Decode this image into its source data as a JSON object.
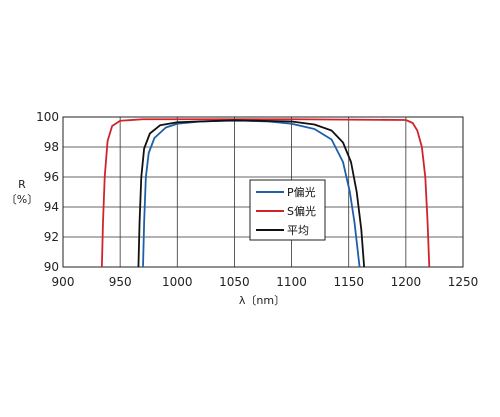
{
  "chart_data": {
    "type": "line",
    "title": "",
    "xlabel": "λ〔nm〕",
    "ylabel_lines": [
      "R",
      "〔%〕"
    ],
    "xlim": [
      900,
      1250
    ],
    "ylim": [
      90,
      100
    ],
    "xticks": [
      900,
      950,
      1000,
      1050,
      1100,
      1150,
      1200,
      1250
    ],
    "yticks": [
      90,
      92,
      94,
      96,
      98,
      100
    ],
    "grid": true,
    "legend_position": "center",
    "series": [
      {
        "name": "P偏光",
        "color": "#1f5fa8",
        "points": [
          [
            970,
            90.0
          ],
          [
            971,
            93.0
          ],
          [
            972.5,
            96.0
          ],
          [
            975,
            97.6
          ],
          [
            980,
            98.6
          ],
          [
            990,
            99.3
          ],
          [
            1000,
            99.55
          ],
          [
            1020,
            99.7
          ],
          [
            1040,
            99.75
          ],
          [
            1060,
            99.75
          ],
          [
            1080,
            99.7
          ],
          [
            1100,
            99.55
          ],
          [
            1120,
            99.2
          ],
          [
            1135,
            98.5
          ],
          [
            1145,
            97.0
          ],
          [
            1151,
            95.0
          ],
          [
            1155,
            93.0
          ],
          [
            1158,
            91.0
          ],
          [
            1159.5,
            90.0
          ]
        ]
      },
      {
        "name": "S偏光",
        "color": "#d0242b",
        "points": [
          [
            934,
            90.0
          ],
          [
            935,
            93.0
          ],
          [
            936.5,
            96.0
          ],
          [
            939,
            98.4
          ],
          [
            943,
            99.4
          ],
          [
            950,
            99.75
          ],
          [
            970,
            99.85
          ],
          [
            1100,
            99.85
          ],
          [
            1200,
            99.8
          ],
          [
            1206,
            99.6
          ],
          [
            1210,
            99.1
          ],
          [
            1214,
            98.0
          ],
          [
            1217,
            96.0
          ],
          [
            1219,
            93.0
          ],
          [
            1220.5,
            90.0
          ]
        ]
      },
      {
        "name": "平均",
        "color": "#111111",
        "points": [
          [
            966,
            90.0
          ],
          [
            967,
            93.0
          ],
          [
            968.5,
            96.0
          ],
          [
            971,
            97.9
          ],
          [
            976,
            98.9
          ],
          [
            985,
            99.45
          ],
          [
            1000,
            99.65
          ],
          [
            1050,
            99.78
          ],
          [
            1100,
            99.7
          ],
          [
            1120,
            99.5
          ],
          [
            1135,
            99.1
          ],
          [
            1145,
            98.3
          ],
          [
            1152,
            97.0
          ],
          [
            1157,
            95.0
          ],
          [
            1161,
            92.5
          ],
          [
            1163.5,
            90.0
          ]
        ]
      }
    ]
  }
}
